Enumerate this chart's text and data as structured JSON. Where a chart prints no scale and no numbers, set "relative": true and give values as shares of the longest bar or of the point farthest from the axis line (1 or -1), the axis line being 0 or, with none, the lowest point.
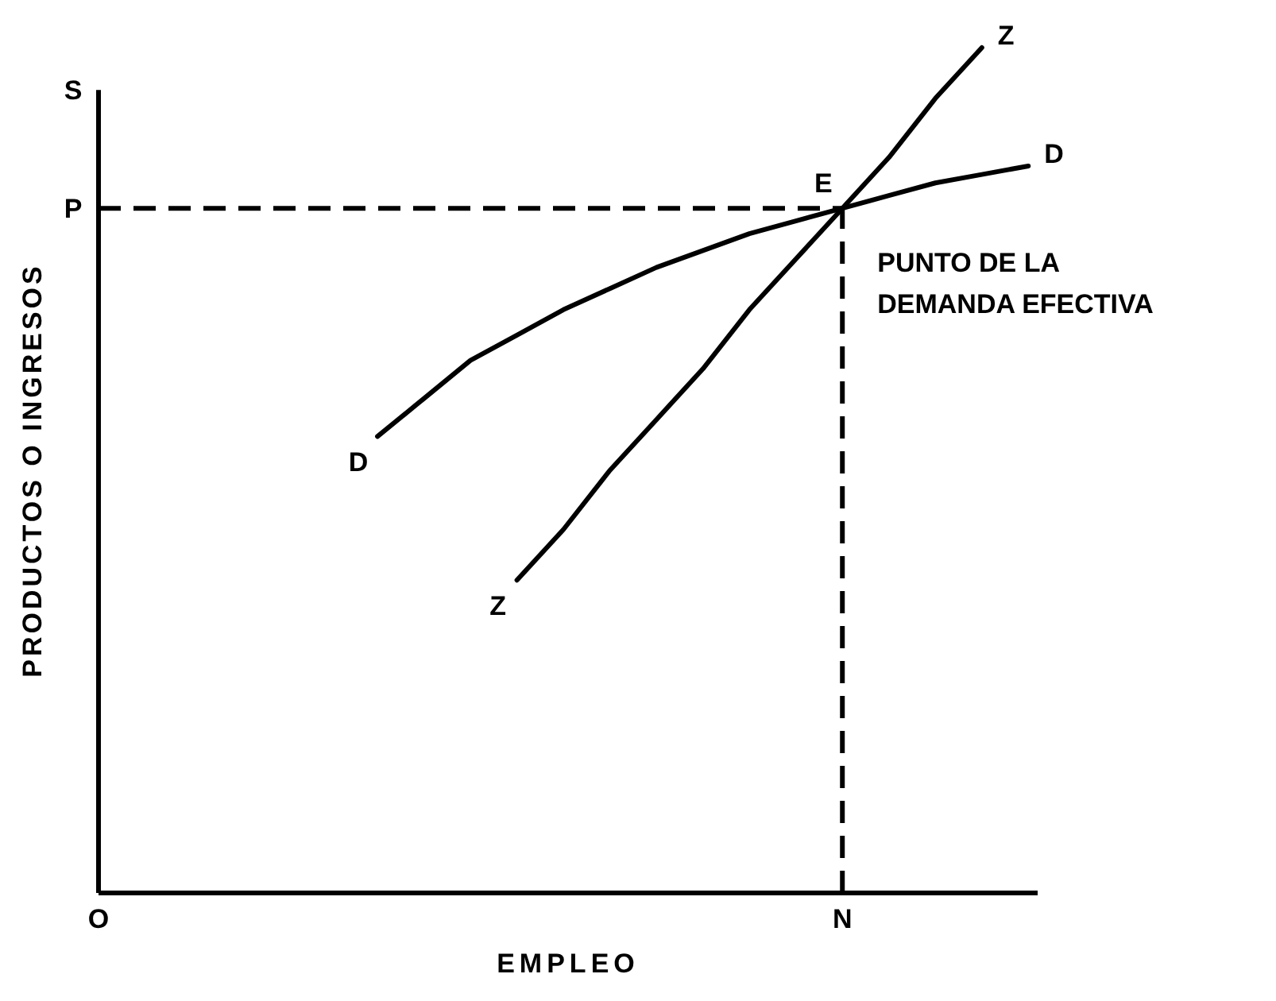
{
  "chart_data": {
    "type": "line",
    "relative": true,
    "xlabel": "EMPLEO",
    "ylabel": "PRODUCTOS O INGRESOS",
    "categories": [
      "O",
      null,
      null,
      null,
      null,
      null,
      null,
      null,
      null,
      null,
      null,
      null,
      null,
      null,
      null,
      null,
      "N",
      null,
      null,
      null,
      null
    ],
    "series": [
      {
        "name": "Z",
        "color": "#000000",
        "values": [
          null,
          null,
          null,
          null,
          null,
          null,
          null,
          null,
          null,
          0.37,
          0.43,
          0.5,
          0.56,
          0.62,
          0.69,
          0.75,
          0.81,
          0.87,
          0.94,
          1,
          null
        ]
      },
      {
        "name": "D",
        "color": "#000000",
        "values": [
          null,
          null,
          null,
          null,
          null,
          null,
          0.54,
          0.585,
          0.63,
          0.66,
          0.69,
          0.715,
          0.74,
          0.76,
          0.78,
          0.795,
          0.81,
          0.825,
          0.84,
          0.85,
          0.86
        ]
      }
    ],
    "ref_lines": [
      {
        "axis": "y",
        "value": 0.81,
        "label": "P",
        "line_style": "dashed",
        "color": "#000000"
      },
      {
        "axis": "x",
        "value": "N",
        "line_style": "dashed",
        "color": "#000000"
      }
    ],
    "annotations": [
      "S",
      {
        "text": "E",
        "x": "N",
        "y": 0.81
      },
      {
        "text": "PUNTO DE LA DEMANDA EFECTIVA",
        "x": "N",
        "y": 0.81
      }
    ]
  }
}
